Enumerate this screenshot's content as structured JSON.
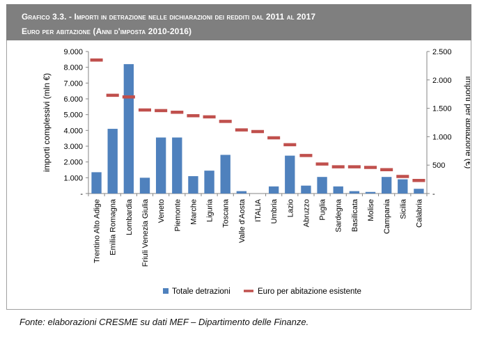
{
  "figure": {
    "title_line1": "Grafico 3.3. - Importi in detrazione nelle dichiarazioni dei redditi dal 2011 al 2017",
    "title_line2": "Euro per abitazione (Anni d'imposta 2010-2016)",
    "source": "Fonte: elaborazioni CRESME su dati MEF – Dipartimento delle Finanze."
  },
  "chart_data": {
    "type": "bar",
    "categories": [
      "Trentino Alto Adige",
      "Emilia Romagna",
      "Lombardia",
      "Friuli Venezia Giulia",
      "Veneto",
      "Piemonte",
      "Marche",
      "Liguria",
      "Toscana",
      "Valle d'Aosta",
      "ITALIA",
      "Umbria",
      "Lazio",
      "Abruzzo",
      "Puglia",
      "Sardegna",
      "Basilicata",
      "Molise",
      "Campania",
      "Sicilia",
      "Calabria"
    ],
    "series": [
      {
        "name": "Totale detrazioni",
        "type": "bar",
        "axis": "left",
        "color": "#4f81bd",
        "values": [
          1350,
          4100,
          8200,
          1000,
          3550,
          3550,
          1100,
          1450,
          2450,
          150,
          null,
          450,
          2400,
          500,
          1050,
          450,
          150,
          100,
          1050,
          900,
          300
        ]
      },
      {
        "name": "Euro per abitazione esistente",
        "type": "dash",
        "axis": "right",
        "color": "#c0504d",
        "values": [
          2350,
          1730,
          1700,
          1470,
          1460,
          1430,
          1370,
          1350,
          1270,
          1120,
          1090,
          980,
          860,
          670,
          520,
          470,
          470,
          460,
          420,
          300,
          230
        ]
      }
    ],
    "ylabel_left": "importi complessivi (mln €)",
    "ylabel_right": "importi per abitazione (€)",
    "yticks_left": [
      "-",
      "1.000",
      "2.000",
      "3.000",
      "4.000",
      "5.000",
      "6.000",
      "7.000",
      "8.000",
      "9.000"
    ],
    "yticks_right": [
      "-",
      "500",
      "1.000",
      "1.500",
      "2.000",
      "2.500"
    ],
    "ylim_left": [
      0,
      9000
    ],
    "ylim_right": [
      0,
      2500
    ],
    "legend_position": "bottom"
  }
}
